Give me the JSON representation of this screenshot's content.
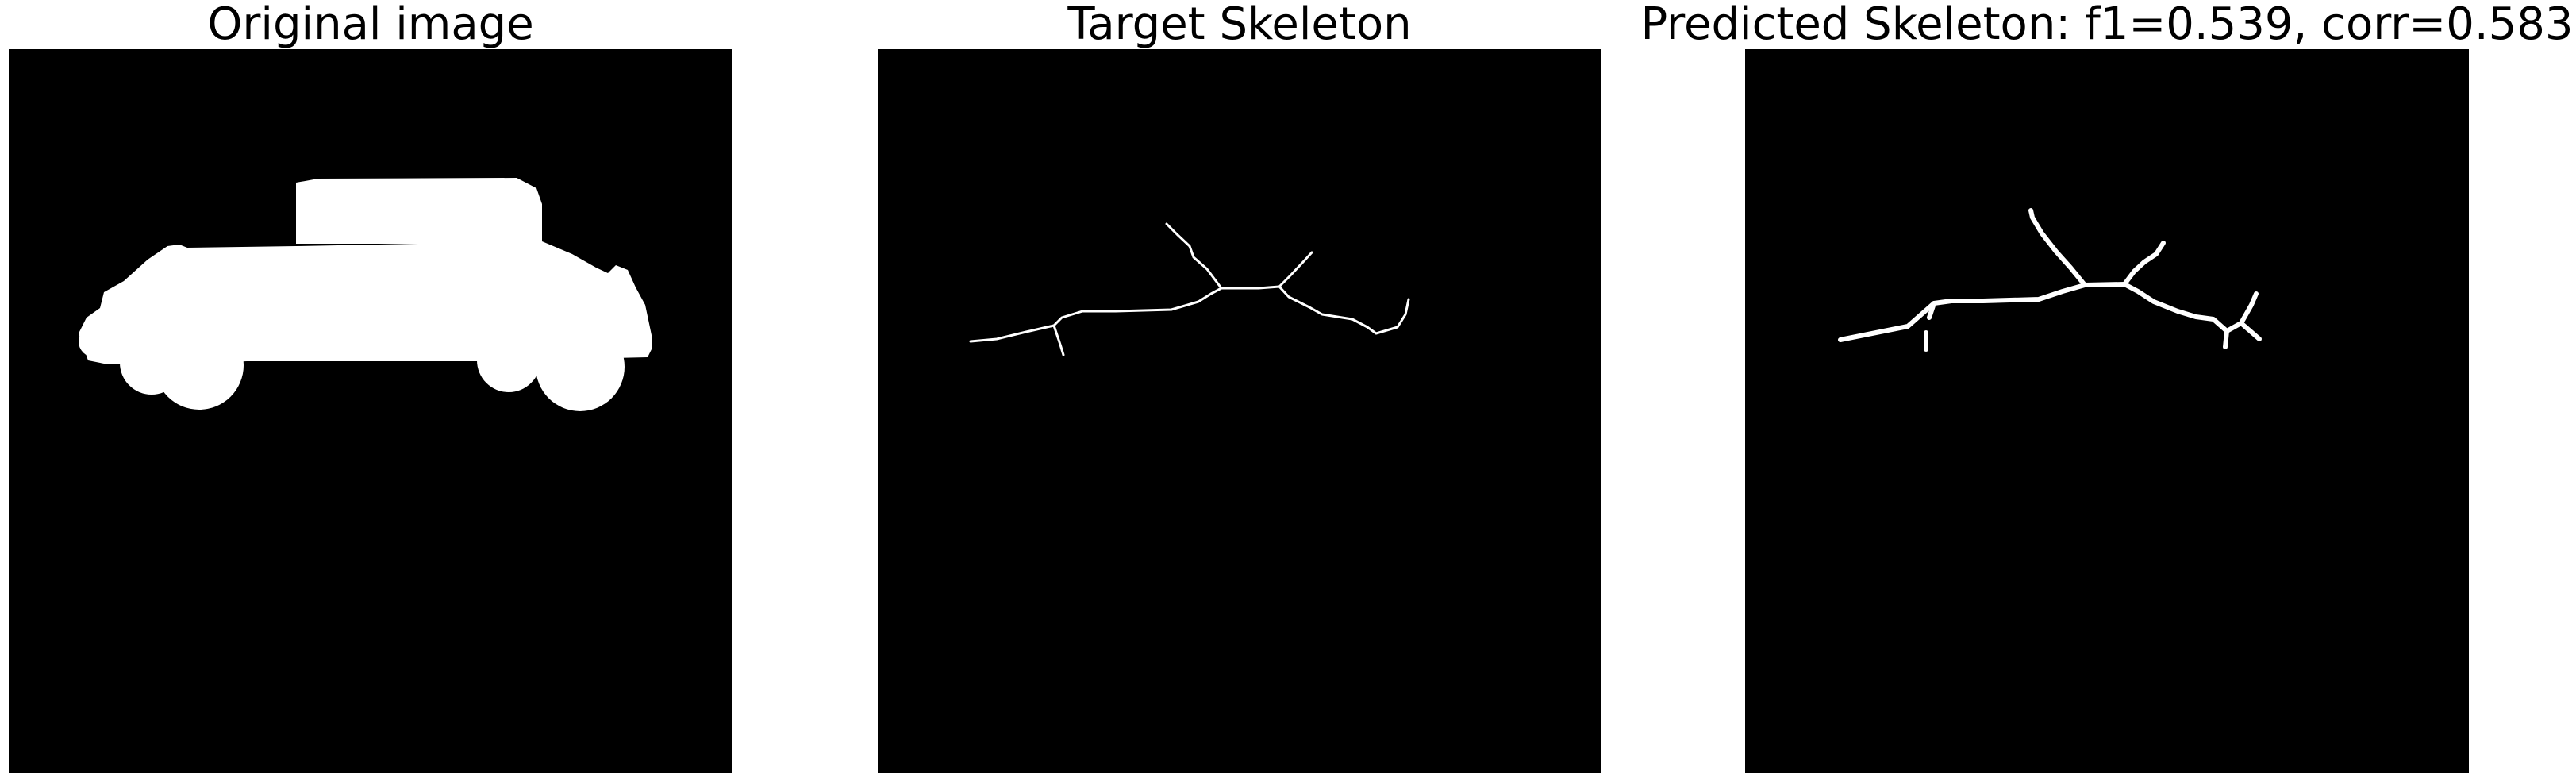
{
  "panels": [
    {
      "title": "Original image"
    },
    {
      "title": "Target Skeleton"
    },
    {
      "title": "Predicted Skeleton: f1=0.539, corr=0.583"
    }
  ],
  "colors": {
    "background": "#000000",
    "foreground": "#ffffff",
    "page": "#ffffff"
  }
}
